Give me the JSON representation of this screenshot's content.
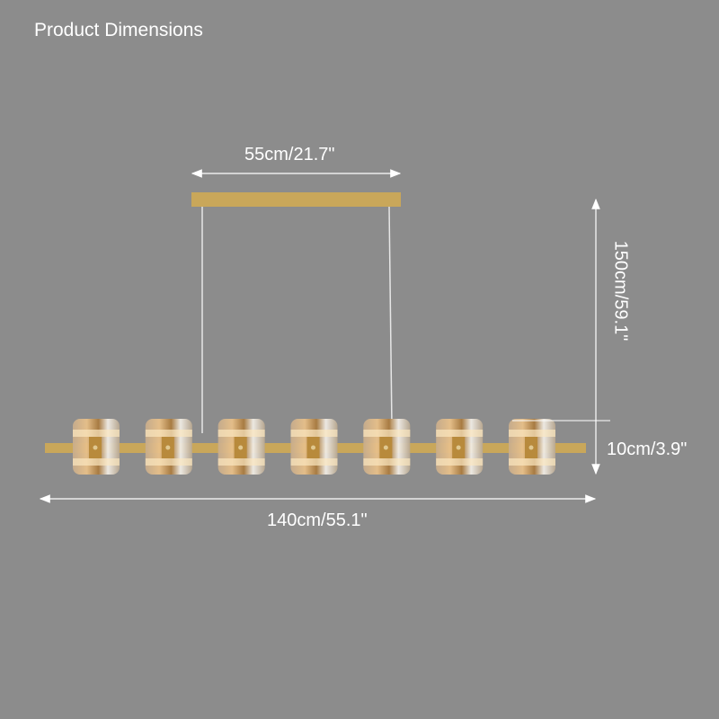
{
  "title": "Product Dimensions",
  "dimensions": {
    "canopy_width": "55cm/21.7\"",
    "height": "150cm/59.1\"",
    "shade_height": "10cm/3.9\"",
    "total_length": "140cm/55.1\""
  },
  "colors": {
    "background": "#8c8c8c",
    "brass": "#c9a75a",
    "dimension_lines": "#ffffff"
  },
  "shade_count": 7
}
